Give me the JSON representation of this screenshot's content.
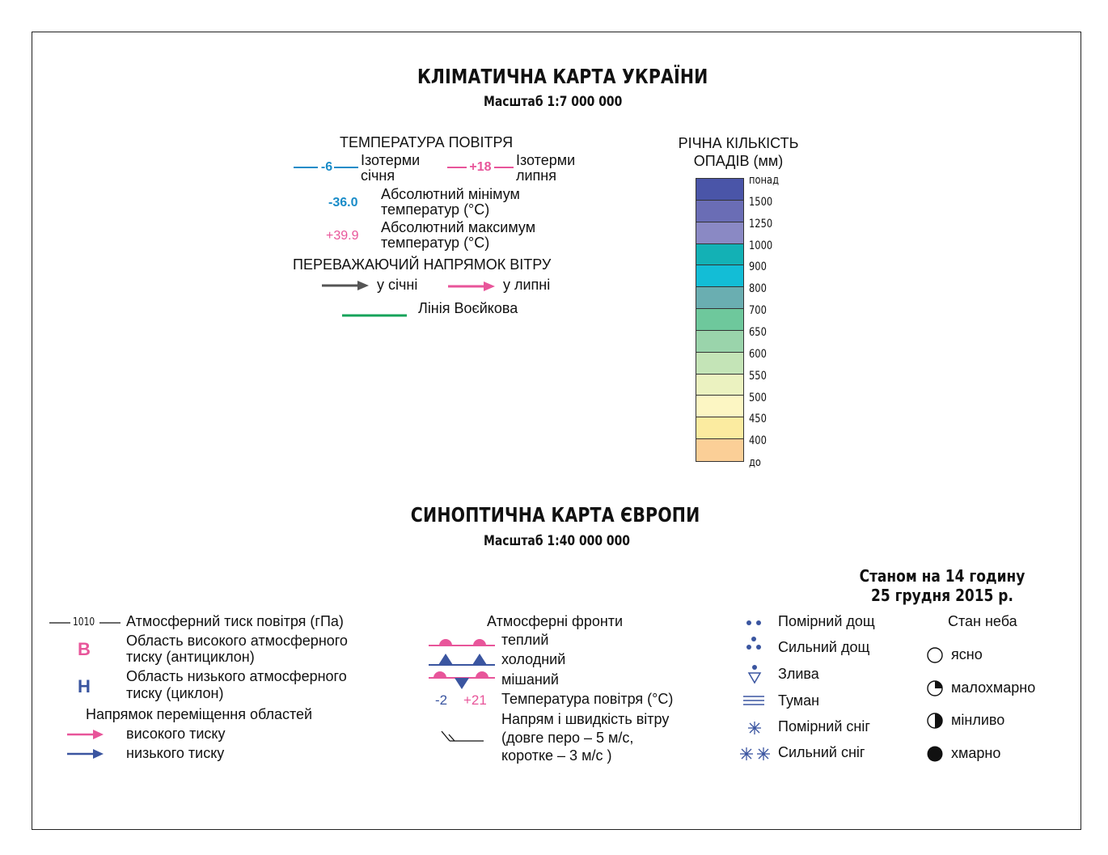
{
  "climate": {
    "title": "КЛІМАТИЧНА КАРТА УКРАЇНИ",
    "scale": "Масштаб 1:7 000 000",
    "temperature": {
      "heading": "ТЕМПЕРАТУРА ПОВІТРЯ",
      "jan_isotherm_value": "-6",
      "jan_isotherm_label_1": "Ізотерми",
      "jan_isotherm_label_2": "січня",
      "jul_isotherm_value": "+18",
      "jul_isotherm_label_1": "Ізотерми",
      "jul_isotherm_label_2": "липня",
      "abs_min_value": "-36.0",
      "abs_min_label_1": "Абсолютний мінімум",
      "abs_min_label_2": "температур (°С)",
      "abs_max_value": "+39.9",
      "abs_max_label_1": "Абсолютний максимум",
      "abs_max_label_2": "температур (°С)"
    },
    "wind": {
      "heading": "ПЕРЕВАЖАЮЧИЙ НАПРЯМОК ВІТРУ",
      "january": "у січні",
      "july": "у липні",
      "voeikov": "Лінія Воєйкова"
    },
    "precipitation": {
      "heading_1": "РІЧНА КІЛЬКІСТЬ",
      "heading_2": "ОПАДІВ (мм)",
      "labels": [
        "понад",
        "1500",
        "1250",
        "1000",
        "900",
        "800",
        "700",
        "650",
        "600",
        "550",
        "500",
        "450",
        "400",
        "до"
      ],
      "colors": [
        "#4a55a8",
        "#6a6db5",
        "#8a89c4",
        "#13b1b5",
        "#13bdd6",
        "#6aaeb1",
        "#6ec89c",
        "#9ad4ab",
        "#c4e4b7",
        "#ebf2c0",
        "#fcf6c3",
        "#fbeba0",
        "#fbcf97"
      ]
    }
  },
  "synoptic": {
    "title": "СИНОПТИЧНА КАРТА ЄВРОПИ",
    "scale": "Масштаб 1:40 000 000",
    "date_1": "Станом на 14 годину",
    "date_2": "25 грудня 2015 р.",
    "pressure": {
      "isobar_value": "1010",
      "isobar_label": "Атмосферний тиск повітря (гПа)",
      "high_symbol": "В",
      "high_label_1": "Область високого атмосферного",
      "high_label_2": "тиску (антициклон)",
      "low_symbol": "Н",
      "low_label_1": "Область низького атмосферного",
      "low_label_2": "тиску (циклон)",
      "movement_heading": "Напрямок переміщення областей",
      "movement_high": "високого тиску",
      "movement_low": "низького тиску"
    },
    "fronts": {
      "heading": "Атмосферні фронти",
      "warm": "теплий",
      "cold": "холодний",
      "mixed": "мішаний",
      "temp_cold_value": "-2",
      "temp_warm_value": "+21",
      "temp_label": "Температура повітря (°С)",
      "wind_label_1": "Напрям і швидкість вітру",
      "wind_label_2": "(довге перо – 5 м/с,",
      "wind_label_3": "коротке  – 3 м/с )"
    },
    "weather": {
      "moderate_rain": "Помірний дощ",
      "heavy_rain": "Сильний дощ",
      "shower": "Злива",
      "fog": "Туман",
      "moderate_snow": "Помірний сніг",
      "heavy_snow": "Сильний сніг"
    },
    "sky": {
      "heading": "Стан неба",
      "clear": "ясно",
      "partly_cloudy": "малохмарно",
      "variable": "мінливо",
      "cloudy": "хмарно"
    }
  },
  "colors": {
    "pink": "#e8559a",
    "blue": "#1a8cc8",
    "navy": "#3a55a0",
    "green": "#16a35a",
    "grey_arrow": "#555555"
  }
}
